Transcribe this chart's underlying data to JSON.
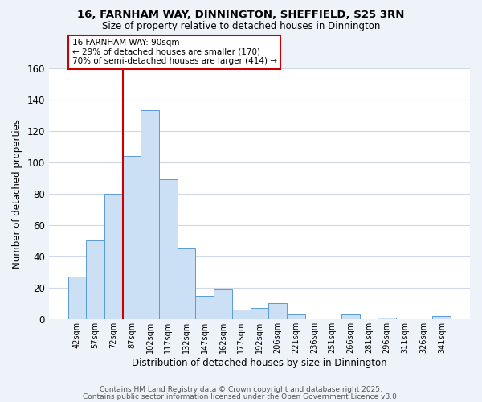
{
  "title": "16, FARNHAM WAY, DINNINGTON, SHEFFIELD, S25 3RN",
  "subtitle": "Size of property relative to detached houses in Dinnington",
  "xlabel": "Distribution of detached houses by size in Dinnington",
  "ylabel": "Number of detached properties",
  "bar_labels": [
    "42sqm",
    "57sqm",
    "72sqm",
    "87sqm",
    "102sqm",
    "117sqm",
    "132sqm",
    "147sqm",
    "162sqm",
    "177sqm",
    "192sqm",
    "206sqm",
    "221sqm",
    "236sqm",
    "251sqm",
    "266sqm",
    "281sqm",
    "296sqm",
    "311sqm",
    "326sqm",
    "341sqm"
  ],
  "bar_values": [
    27,
    50,
    80,
    104,
    133,
    89,
    45,
    15,
    19,
    6,
    7,
    10,
    3,
    0,
    0,
    3,
    0,
    1,
    0,
    0,
    2
  ],
  "bar_color": "#cce0f5",
  "bar_edge_color": "#5b9bd5",
  "ylim": [
    0,
    160
  ],
  "yticks": [
    0,
    20,
    40,
    60,
    80,
    100,
    120,
    140,
    160
  ],
  "vline_color": "#cc0000",
  "annotation_title": "16 FARNHAM WAY: 90sqm",
  "annotation_line1": "← 29% of detached houses are smaller (170)",
  "annotation_line2": "70% of semi-detached houses are larger (414) →",
  "annotation_box_color": "#ffffff",
  "annotation_box_edge": "#cc0000",
  "footer1": "Contains HM Land Registry data © Crown copyright and database right 2025.",
  "footer2": "Contains public sector information licensed under the Open Government Licence v3.0.",
  "bg_color": "#eef2f9",
  "plot_bg_color": "#ffffff",
  "grid_color": "#d0d8e8"
}
